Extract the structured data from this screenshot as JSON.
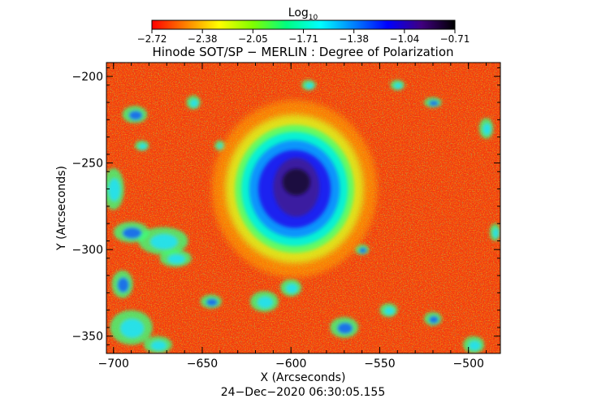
{
  "colorbar": {
    "label_base": "Log",
    "label_sub": "10",
    "ticks": [
      "−2.72",
      "−2.38",
      "−2.05",
      "−1.71",
      "−1.38",
      "−1.04",
      "−0.71"
    ],
    "colormap": [
      "#ff0000",
      "#ff8000",
      "#ffff00",
      "#80ff00",
      "#00ff80",
      "#00ffff",
      "#0080ff",
      "#0000ff",
      "#400080",
      "#000000"
    ]
  },
  "title": "Hinode SOT/SP − MERLIN : Degree of Polarization",
  "axes": {
    "xlabel": "X (Arcseconds)",
    "ylabel": "Y (Arcseconds)",
    "x_ticks": [
      {
        "value": -700,
        "label": "−700"
      },
      {
        "value": -650,
        "label": "−650"
      },
      {
        "value": -600,
        "label": "−600"
      },
      {
        "value": -550,
        "label": "−550"
      },
      {
        "value": -500,
        "label": "−500"
      }
    ],
    "y_ticks": [
      {
        "value": -200,
        "label": "−200"
      },
      {
        "value": -250,
        "label": "−250"
      },
      {
        "value": -300,
        "label": "−300"
      },
      {
        "value": -350,
        "label": "−350"
      }
    ],
    "xlim": [
      -704,
      -482
    ],
    "ylim": [
      -360,
      -192
    ]
  },
  "timestamp": "24−Dec−2020 06:30:05.155",
  "features": {
    "sunspot_center": [
      -598,
      -265
    ],
    "umbra_radius": [
      13,
      17
    ],
    "penumbra_radius": [
      30,
      33
    ]
  }
}
